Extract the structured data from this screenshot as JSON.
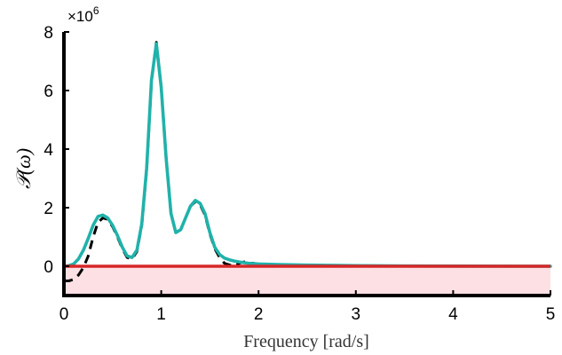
{
  "chart_data": {
    "type": "line",
    "title": "",
    "xlabel": "Frequency [rad/s]",
    "ylabel": "𝒫(ω)",
    "y_exponent_label": "×10",
    "y_exponent_power": "6",
    "y_scale": 1000000,
    "xlim": [
      0,
      5
    ],
    "ylim": [
      -1000000,
      8000000
    ],
    "x_ticks": [
      0,
      1,
      2,
      3,
      4,
      5
    ],
    "x_tick_labels": [
      "0",
      "1",
      "2",
      "3",
      "4",
      "5"
    ],
    "y_ticks": [
      0,
      2000000,
      4000000,
      6000000,
      8000000
    ],
    "y_tick_labels": [
      "0",
      "2",
      "4",
      "6",
      "8"
    ],
    "grid": false,
    "colors": {
      "band_fill": "#fde0e4",
      "zero_line": "#d62728",
      "dashed_series": "#000000",
      "solid_series": "#20b2aa"
    },
    "band": {
      "y_min": -1000000,
      "y_max": 0
    },
    "series": [
      {
        "style": "dashed",
        "x": [
          0.0,
          0.05,
          0.1,
          0.15,
          0.2,
          0.25,
          0.3,
          0.35,
          0.4,
          0.45,
          0.5,
          0.55,
          0.6,
          0.65,
          0.7,
          0.75,
          0.8,
          0.85,
          0.9,
          0.95,
          1.0,
          1.05,
          1.1,
          1.15,
          1.2,
          1.25,
          1.3,
          1.35,
          1.4,
          1.45,
          1.5,
          1.55,
          1.6,
          1.65,
          1.7,
          1.75,
          1.8,
          1.85,
          1.9,
          2.0,
          2.2,
          2.5,
          3.0,
          3.5,
          4.0,
          5.0
        ],
        "values": [
          -500000,
          -500000,
          -450000,
          -300000,
          -50000,
          350000,
          1000000,
          1500000,
          1650000,
          1600000,
          1350000,
          1000000,
          600000,
          300000,
          250000,
          500000,
          1400000,
          3300000,
          6300000,
          7650000,
          6100000,
          3700000,
          1800000,
          1150000,
          1250000,
          1650000,
          2050000,
          2200000,
          2100000,
          1750000,
          1100000,
          600000,
          300000,
          100000,
          50000,
          0,
          100000,
          150000,
          120000,
          80000,
          40000,
          20000,
          10000,
          5000,
          0,
          0
        ]
      },
      {
        "style": "solid",
        "x": [
          0.0,
          0.05,
          0.1,
          0.15,
          0.2,
          0.25,
          0.3,
          0.35,
          0.4,
          0.45,
          0.5,
          0.55,
          0.6,
          0.65,
          0.7,
          0.75,
          0.8,
          0.85,
          0.9,
          0.95,
          1.0,
          1.05,
          1.1,
          1.15,
          1.2,
          1.25,
          1.3,
          1.35,
          1.4,
          1.45,
          1.5,
          1.55,
          1.6,
          1.65,
          1.7,
          1.75,
          1.8,
          1.85,
          1.9,
          2.0,
          2.2,
          2.5,
          3.0,
          3.5,
          4.0,
          5.0
        ],
        "values": [
          0,
          20000,
          80000,
          250000,
          550000,
          950000,
          1400000,
          1700000,
          1750000,
          1650000,
          1400000,
          1050000,
          650000,
          350000,
          300000,
          550000,
          1450000,
          3350000,
          6350000,
          7600000,
          6100000,
          3700000,
          1800000,
          1150000,
          1250000,
          1650000,
          2050000,
          2250000,
          2150000,
          1800000,
          1150000,
          650000,
          400000,
          280000,
          220000,
          180000,
          150000,
          120000,
          100000,
          80000,
          60000,
          40000,
          20000,
          10000,
          5000,
          0
        ]
      }
    ]
  }
}
